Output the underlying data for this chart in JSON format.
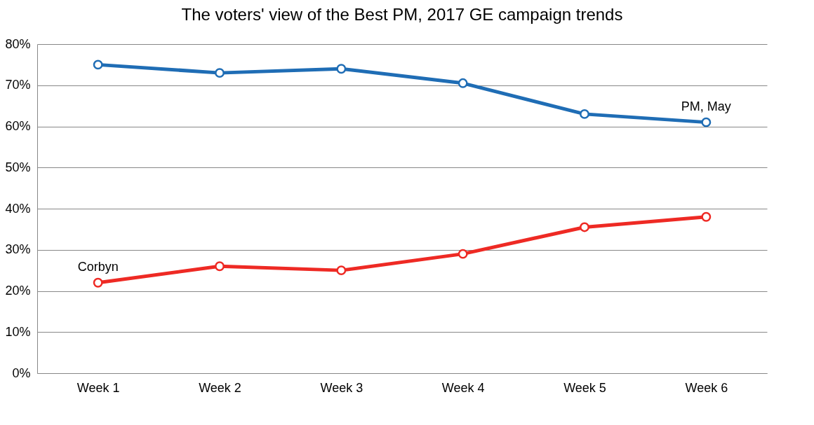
{
  "chart_data": {
    "type": "line",
    "title": "The voters' view of the Best PM, 2017 GE campaign trends",
    "categories": [
      "Week 1",
      "Week 2",
      "Week 3",
      "Week 4",
      "Week 5",
      "Week 6"
    ],
    "series": [
      {
        "name": "PM, May",
        "color": "#1f6db5",
        "values": [
          75,
          73,
          74,
          70.5,
          63,
          61
        ]
      },
      {
        "name": "Corbyn",
        "color": "#ee2a24",
        "values": [
          22,
          26,
          25,
          29,
          35.5,
          38
        ]
      }
    ],
    "ylim": [
      0,
      80
    ],
    "yticks": [
      {
        "value": 0,
        "label": "0%"
      },
      {
        "value": 10,
        "label": "10%"
      },
      {
        "value": 20,
        "label": "20%"
      },
      {
        "value": 30,
        "label": "30%"
      },
      {
        "value": 40,
        "label": "40%"
      },
      {
        "value": 50,
        "label": "50%"
      },
      {
        "value": 60,
        "label": "60%"
      },
      {
        "value": 70,
        "label": "70%"
      },
      {
        "value": 80,
        "label": "80%"
      }
    ],
    "grid": "y",
    "legend": false,
    "marker": "circle",
    "line_style": "solid"
  }
}
